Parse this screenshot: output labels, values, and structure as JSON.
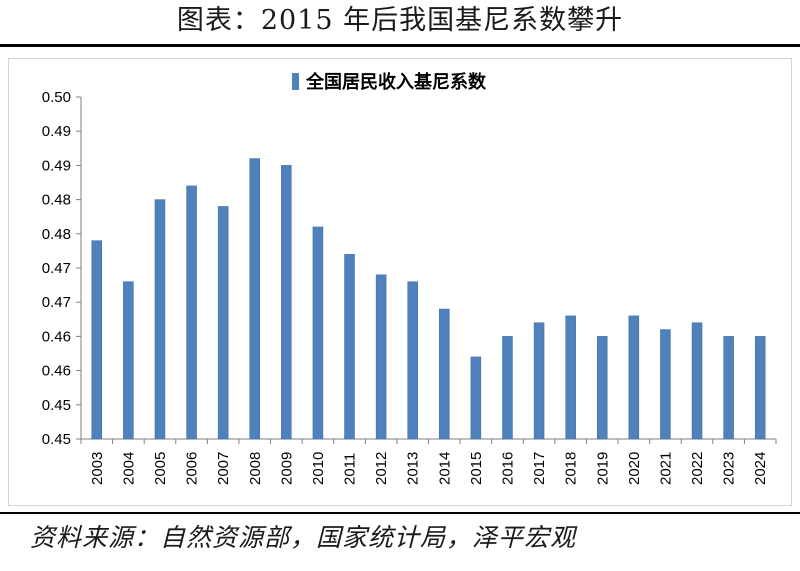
{
  "page_title": "图表：2015 年后我国基尼系数攀升",
  "source_note": "资料来源：自然资源部，国家统计局，泽平宏观",
  "colors": {
    "bar": "#4f81bd",
    "bar_dark": "#3a6aa0",
    "axis": "#7f7f7f"
  },
  "chart_data": {
    "type": "bar",
    "legend_position": "top",
    "grid": false,
    "categories": [
      "2003",
      "2004",
      "2005",
      "2006",
      "2007",
      "2008",
      "2009",
      "2010",
      "2011",
      "2012",
      "2013",
      "2014",
      "2015",
      "2016",
      "2017",
      "2018",
      "2019",
      "2020",
      "2021",
      "2022",
      "2023",
      "2024"
    ],
    "series": [
      {
        "name": "全国居民收入基尼系数",
        "values": [
          0.479,
          0.473,
          0.485,
          0.487,
          0.484,
          0.491,
          0.49,
          0.481,
          0.477,
          0.474,
          0.473,
          0.469,
          0.462,
          0.465,
          0.467,
          0.468,
          0.465,
          0.468,
          0.466,
          0.467,
          0.465,
          0.465
        ]
      }
    ],
    "ylim": [
      0.45,
      0.5
    ],
    "yticks": [
      {
        "value": 0.45,
        "label": "0.45"
      },
      {
        "value": 0.455,
        "label": "0.45"
      },
      {
        "value": 0.46,
        "label": "0.46"
      },
      {
        "value": 0.465,
        "label": "0.46"
      },
      {
        "value": 0.47,
        "label": "0.47"
      },
      {
        "value": 0.475,
        "label": "0.47"
      },
      {
        "value": 0.48,
        "label": "0.48"
      },
      {
        "value": 0.485,
        "label": "0.48"
      },
      {
        "value": 0.49,
        "label": "0.49"
      },
      {
        "value": 0.495,
        "label": "0.49"
      },
      {
        "value": 0.5,
        "label": "0.50"
      }
    ]
  }
}
